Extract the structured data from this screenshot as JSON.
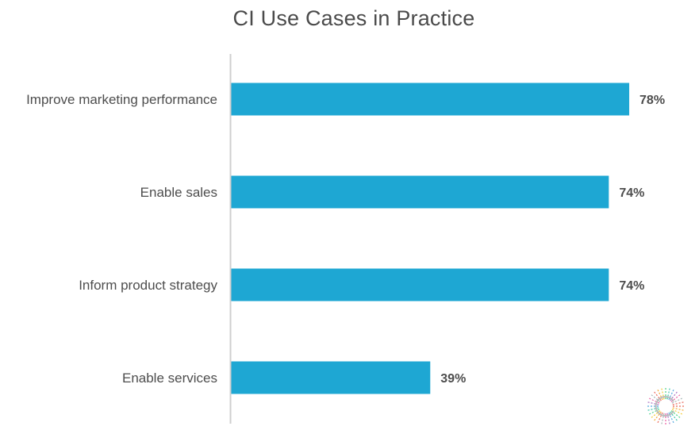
{
  "chart_data": {
    "type": "bar",
    "orientation": "horizontal",
    "title": "CI Use Cases in Practice",
    "categories": [
      "Improve marketing performance",
      "Enable sales",
      "Inform product strategy",
      "Enable services"
    ],
    "values": [
      78,
      74,
      74,
      39
    ],
    "value_labels": [
      "78%",
      "74%",
      "74%",
      "39%"
    ],
    "xlim": [
      0,
      100
    ],
    "grid": false,
    "bar_color": "#1ea7d3",
    "axis_color": "#cfcfcf"
  },
  "logo": {
    "icon": "starburst-logo-icon"
  }
}
